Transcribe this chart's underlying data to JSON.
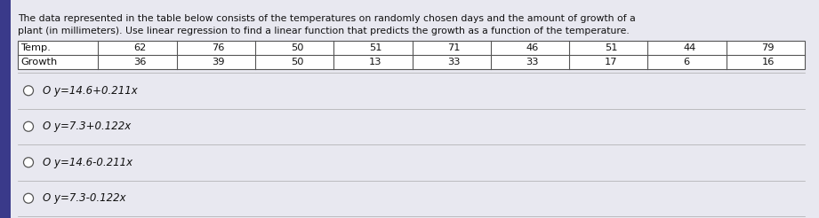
{
  "title_line1": "The data represented in the table below consists of the temperatures on randomly chosen days and the amount of growth of a",
  "title_line2": "plant (in millimeters). Use linear regression to find a linear function that predicts the growth as a function of the temperature.",
  "table_headers": [
    "Temp.",
    "62",
    "76",
    "50",
    "51",
    "71",
    "46",
    "51",
    "44",
    "79"
  ],
  "table_row2": [
    "Growth",
    "36",
    "39",
    "50",
    "13",
    "33",
    "33",
    "17",
    "6",
    "16"
  ],
  "options": [
    "y=14.6+0.211x",
    "y=7.3+0.122x",
    "y=14.6-0.211x",
    "y=7.3-0.122x"
  ],
  "bg_color": "#d8d8e8",
  "content_bg": "#e8e8f0",
  "table_bg": "#ffffff",
  "table_border_color": "#555555",
  "text_color": "#111111",
  "option_text_color": "#111111",
  "font_size_title": 7.8,
  "font_size_table": 8.2,
  "font_size_options": 8.5,
  "left_bar_color": "#3a3a8a"
}
